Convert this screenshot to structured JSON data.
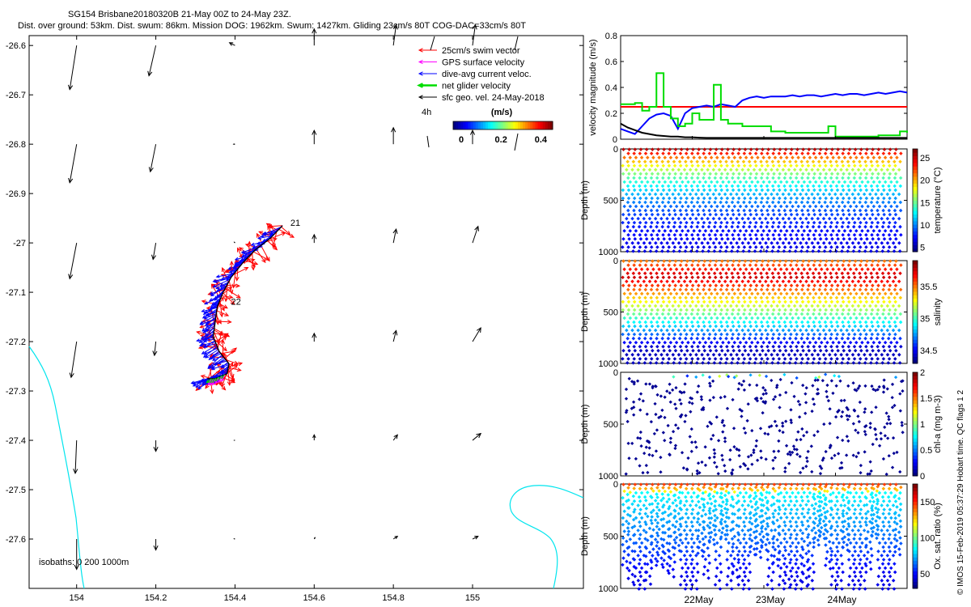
{
  "title": {
    "line1": "SG154 Brisbane20180320B 21-May 00Z to 24-May 23Z.",
    "line2": "Dist. over ground: 53km. Dist. swum: 86km. Mission DOG: 1962km. Swum: 1427km. Gliding 23cm/s 80T COG-DAC=33cm/s 80T"
  },
  "credit": "© IMOS 15-Feb-2019 05:37:29 Hobart time. QC flags 1  2",
  "colors": {
    "swim": "#ff0000",
    "gps": "#ff00ff",
    "dac": "#0000ff",
    "net": "#00dd00",
    "sfc": "#000000",
    "coast": "#00e5ee",
    "speed_red": "#ff0000",
    "speed_blue": "#0000ff",
    "speed_green": "#00dd00",
    "speed_black": "#000000"
  },
  "chart_data": [
    {
      "id": "map",
      "type": "map",
      "xlabel": "",
      "ylabel": "",
      "xlim": [
        153.88,
        155.28
      ],
      "ylim": [
        -27.7,
        -26.58
      ],
      "xticks": [
        154,
        154.2,
        154.4,
        154.6,
        154.8,
        155
      ],
      "xtick_labels": [
        "154",
        "154.2",
        "154.4",
        "154.6",
        "154.8",
        "155"
      ],
      "yticks": [
        -26.6,
        -26.7,
        -26.8,
        -26.9,
        -27,
        -27.1,
        -27.2,
        -27.3,
        -27.4,
        -27.5,
        -27.6
      ],
      "ytick_labels": [
        "-26.6",
        "-26.7",
        "-26.8",
        "-26.9",
        "-27",
        "-27.1",
        "-27.2",
        "-27.3",
        "-27.4",
        "-27.5",
        "-27.6"
      ],
      "legend": {
        "position": "top-right",
        "items": [
          {
            "label": "25cm/s swim vector",
            "color": "swim"
          },
          {
            "label": "GPS surface velocity",
            "color": "gps"
          },
          {
            "label": "dive-avg current veloc.",
            "color": "dac"
          },
          {
            "label": "net glider velocity",
            "color": "net"
          },
          {
            "label": "sfc geo. vel. 24-May-2018",
            "color": "sfc"
          }
        ],
        "time_label": "4h"
      },
      "colorbar": {
        "label": "(m/s)",
        "ticks": [
          "0",
          "0.2",
          "0.4"
        ],
        "range": [
          0,
          0.5
        ]
      },
      "isobaths_label": "isobaths: 0   200  1000m",
      "day_labels": [
        {
          "text": "21",
          "lon": 154.54,
          "lat": -26.965
        },
        {
          "text": "22",
          "lon": 154.39,
          "lat": -27.125
        }
      ],
      "track": [
        [
          154.52,
          -26.965
        ],
        [
          154.49,
          -26.99
        ],
        [
          154.45,
          -27.015
        ],
        [
          154.42,
          -27.04
        ],
        [
          154.39,
          -27.07
        ],
        [
          154.37,
          -27.1
        ],
        [
          154.355,
          -27.13
        ],
        [
          154.35,
          -27.16
        ],
        [
          154.345,
          -27.19
        ],
        [
          154.36,
          -27.22
        ],
        [
          154.385,
          -27.245
        ],
        [
          154.38,
          -27.265
        ],
        [
          154.35,
          -27.275
        ],
        [
          154.33,
          -27.275
        ]
      ],
      "grid_lons": [
        154,
        154.2,
        154.4,
        154.6,
        154.8,
        155
      ],
      "grid_lats": [
        -26.6,
        -26.8,
        -27,
        -27.2,
        -27.4,
        -27.6
      ],
      "surface_vectors_uv": [
        [
          [
            -0.05,
            -0.32
          ],
          [
            -0.05,
            -0.22
          ],
          [
            -0.04,
            0.02
          ],
          [
            0,
            0.12
          ],
          [
            0.02,
            0.15
          ],
          [
            0.02,
            0.15
          ]
        ],
        [
          [
            -0.05,
            -0.28
          ],
          [
            -0.04,
            -0.2
          ],
          [
            -0.01,
            0
          ],
          [
            0,
            0.1
          ],
          [
            0,
            0.12
          ],
          [
            0,
            0.1
          ]
        ],
        [
          [
            -0.05,
            -0.26
          ],
          [
            -0.02,
            -0.12
          ],
          [
            -0.005,
            0.005
          ],
          [
            0,
            0.06
          ],
          [
            0.02,
            0.1
          ],
          [
            0.04,
            0.12
          ]
        ],
        [
          [
            -0.04,
            -0.26
          ],
          [
            -0.01,
            -0.1
          ],
          [
            0,
            0
          ],
          [
            0,
            0.06
          ],
          [
            0.02,
            0.08
          ],
          [
            0.06,
            0.1
          ]
        ],
        [
          [
            -0.01,
            -0.24
          ],
          [
            0,
            -0.08
          ],
          [
            -0.005,
            0
          ],
          [
            0,
            0.04
          ],
          [
            0.03,
            0.04
          ],
          [
            0.06,
            0.05
          ]
        ],
        [
          [
            0,
            -0.22
          ],
          [
            0,
            -0.08
          ],
          [
            -0.006,
            0.002
          ],
          [
            0.006,
            0.01
          ],
          [
            0.03,
            0.02
          ],
          [
            0.04,
            0.02
          ]
        ]
      ]
    },
    {
      "id": "speed",
      "type": "line",
      "ylabel": "velocity magnitude (m/s)",
      "ylim": [
        0,
        0.8
      ],
      "yticks": [
        0,
        0.2,
        0.4,
        0.6,
        0.8
      ],
      "ytick_labels": [
        "0",
        "0.2",
        "0.4",
        "0.6",
        "0.8"
      ],
      "x": [
        0,
        0.1,
        0.2,
        0.3,
        0.4,
        0.5,
        0.6,
        0.7,
        0.8,
        0.9,
        1.0,
        1.1,
        1.2,
        1.3,
        1.4,
        1.5,
        1.6,
        1.7,
        1.8,
        1.9,
        2.0,
        2.1,
        2.2,
        2.3,
        2.4,
        2.5,
        2.6,
        2.7,
        2.8,
        2.9,
        3.0,
        3.1,
        3.2,
        3.3,
        3.4,
        3.5,
        3.6,
        3.7,
        3.8,
        3.9,
        4.0
      ],
      "series": [
        {
          "name": "swim",
          "color": "speed_red",
          "values": [
            0.25,
            0.25,
            0.25,
            0.25,
            0.25,
            0.25,
            0.25,
            0.25,
            0.25,
            0.25,
            0.25,
            0.25,
            0.25,
            0.25,
            0.25,
            0.25,
            0.25,
            0.25,
            0.25,
            0.25,
            0.25,
            0.25,
            0.25,
            0.25,
            0.25,
            0.25,
            0.25,
            0.25,
            0.25,
            0.25,
            0.25,
            0.25,
            0.25,
            0.25,
            0.25,
            0.25,
            0.25,
            0.25,
            0.25,
            0.25,
            0.25
          ]
        },
        {
          "name": "dive-avg current",
          "color": "speed_blue",
          "values": [
            0.08,
            0.06,
            0.04,
            0.1,
            0.16,
            0.19,
            0.2,
            0.18,
            0.08,
            0.2,
            0.24,
            0.25,
            0.26,
            0.25,
            0.27,
            0.26,
            0.25,
            0.3,
            0.32,
            0.33,
            0.32,
            0.33,
            0.33,
            0.33,
            0.34,
            0.33,
            0.34,
            0.34,
            0.33,
            0.34,
            0.35,
            0.34,
            0.35,
            0.35,
            0.34,
            0.35,
            0.36,
            0.35,
            0.36,
            0.37,
            0.36
          ]
        },
        {
          "name": "net glider",
          "color": "speed_green",
          "values": [
            0.27,
            0.27,
            0.28,
            0.22,
            0.25,
            0.51,
            0.25,
            0.16,
            0.1,
            0.12,
            0.2,
            0.15,
            0.15,
            0.42,
            0.15,
            0.12,
            0.12,
            0.1,
            0.1,
            0.1,
            0.1,
            0.06,
            0.06,
            0.05,
            0.05,
            0.05,
            0.05,
            0.05,
            0.05,
            0.1,
            0.02,
            0.02,
            0.02,
            0.02,
            0.02,
            0.02,
            0.03,
            0.03,
            0.03,
            0.06,
            0.05
          ]
        },
        {
          "name": "surface geo",
          "color": "speed_black",
          "values": [
            0.12,
            0.09,
            0.07,
            0.05,
            0.04,
            0.03,
            0.025,
            0.02,
            0.02,
            0.015,
            0.015,
            0.012,
            0.01,
            0.01,
            0.01,
            0.01,
            0.01,
            0.01,
            0.01,
            0.01,
            0.01,
            0.01,
            0.01,
            0.01,
            0.01,
            0.01,
            0.01,
            0.01,
            0.01,
            0.01,
            0.01,
            0.01,
            0.01,
            0.01,
            0.01,
            0.01,
            0.01,
            0.01,
            0.01,
            0.01,
            0.01
          ]
        }
      ]
    },
    {
      "id": "temperature",
      "type": "scatter",
      "ylabel": "Depth (m)",
      "ylim": [
        1000,
        0
      ],
      "yticks": [
        0,
        500,
        1000
      ],
      "ytick_labels": [
        "0",
        "500",
        "1000"
      ],
      "colorbar": {
        "label": "temperature (°C)",
        "range": [
          4,
          27
        ],
        "ticks": [
          5,
          10,
          15,
          20,
          25
        ],
        "tick_labels": [
          "5",
          "10",
          "15",
          "20",
          "25"
        ]
      },
      "profile": {
        "surface": 26,
        "deep": 5,
        "scale": 350
      }
    },
    {
      "id": "salinity",
      "type": "scatter",
      "ylabel": "Depth (m)",
      "ylim": [
        1000,
        0
      ],
      "yticks": [
        0,
        500,
        1000
      ],
      "ytick_labels": [
        "0",
        "500",
        "1000"
      ],
      "colorbar": {
        "label": "salinity",
        "range": [
          34.3,
          35.9
        ],
        "ticks": [
          34.5,
          35,
          35.5
        ],
        "tick_labels": [
          "34.5",
          "35",
          "35.5"
        ]
      },
      "profile": {
        "surface": 35.5,
        "max": 35.8,
        "deep": 34.4
      }
    },
    {
      "id": "chl",
      "type": "scatter",
      "ylabel": "Depth (m)",
      "ylim": [
        1000,
        0
      ],
      "yticks": [
        0,
        500,
        1000
      ],
      "ytick_labels": [
        "0",
        "500",
        "1000"
      ],
      "colorbar": {
        "label": "chl-a (mg m-3)",
        "range": [
          0,
          2
        ],
        "ticks": [
          0,
          0.5,
          1,
          1.5,
          2
        ],
        "tick_labels": [
          "0",
          "0.5",
          "1",
          "1.5",
          "2"
        ]
      }
    },
    {
      "id": "oxygen",
      "type": "scatter",
      "ylabel": "Depth (m)",
      "ylim": [
        1000,
        0
      ],
      "yticks": [
        0,
        500,
        1000
      ],
      "ytick_labels": [
        "0",
        "500",
        "1000"
      ],
      "colorbar": {
        "label": "Ox. sat. ratio (%)",
        "range": [
          30,
          175
        ],
        "ticks": [
          50,
          100,
          150
        ],
        "tick_labels": [
          "50",
          "100",
          "150"
        ]
      },
      "xtick_labels": [
        "22May",
        "23May",
        "24May"
      ],
      "xtick_days": [
        1,
        2,
        3
      ]
    }
  ]
}
